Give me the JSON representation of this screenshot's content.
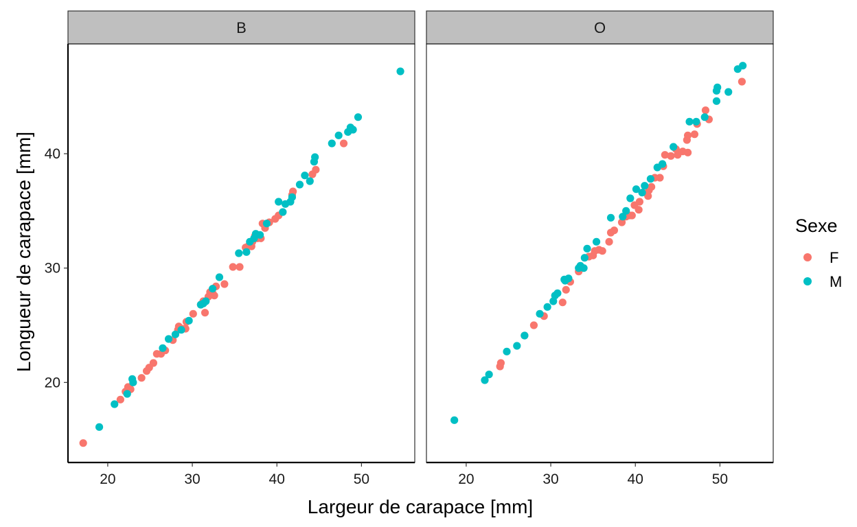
{
  "chart_data": {
    "type": "scatter",
    "xlabel": "Largeur de carapace  [mm]",
    "ylabel": "Longueur de carapace  [mm]",
    "xlim": [
      15.3,
      56.3
    ],
    "ylim": [
      13.0,
      49.6
    ],
    "x_ticks": [
      20,
      30,
      40,
      50
    ],
    "y_ticks": [
      20,
      30,
      40
    ],
    "grid": false,
    "legend": {
      "title": "Sexe",
      "position": "right",
      "entries": [
        {
          "label": "F",
          "color": "#F8766D"
        },
        {
          "label": "M",
          "color": "#00BFC4"
        }
      ]
    },
    "panels": [
      {
        "label": "B",
        "series": [
          {
            "name": "F",
            "color": "#F8766D",
            "points": [
              [
                17.1,
                14.7
              ],
              [
                21.5,
                18.5
              ],
              [
                22.1,
                19.2
              ],
              [
                22.4,
                19.6
              ],
              [
                22.7,
                19.4
              ],
              [
                24.0,
                20.4
              ],
              [
                24.6,
                21.0
              ],
              [
                24.9,
                21.3
              ],
              [
                25.4,
                21.7
              ],
              [
                25.8,
                22.5
              ],
              [
                26.3,
                22.5
              ],
              [
                26.8,
                22.8
              ],
              [
                27.7,
                23.7
              ],
              [
                28.3,
                24.6
              ],
              [
                28.4,
                24.9
              ],
              [
                28.8,
                24.7
              ],
              [
                29.2,
                24.7
              ],
              [
                29.3,
                25.3
              ],
              [
                30.1,
                26.0
              ],
              [
                31.0,
                26.8
              ],
              [
                31.3,
                27.1
              ],
              [
                31.5,
                26.1
              ],
              [
                31.9,
                27.5
              ],
              [
                32.1,
                27.9
              ],
              [
                32.4,
                27.8
              ],
              [
                32.6,
                27.6
              ],
              [
                32.8,
                28.4
              ],
              [
                33.8,
                28.6
              ],
              [
                34.8,
                30.1
              ],
              [
                35.6,
                30.1
              ],
              [
                36.3,
                31.8
              ],
              [
                36.6,
                31.9
              ],
              [
                37.0,
                31.9
              ],
              [
                37.1,
                32.3
              ],
              [
                37.4,
                32.8
              ],
              [
                37.7,
                32.6
              ],
              [
                38.1,
                32.6
              ],
              [
                38.3,
                33.9
              ],
              [
                38.6,
                33.5
              ],
              [
                39.1,
                34.0
              ],
              [
                39.8,
                34.3
              ],
              [
                40.2,
                34.6
              ],
              [
                41.8,
                36.4
              ],
              [
                41.9,
                36.7
              ],
              [
                44.2,
                38.2
              ],
              [
                44.6,
                38.6
              ],
              [
                47.9,
                40.9
              ]
            ]
          },
          {
            "name": "M",
            "color": "#00BFC4",
            "points": [
              [
                19.0,
                16.1
              ],
              [
                20.8,
                18.1
              ],
              [
                22.3,
                19.0
              ],
              [
                22.9,
                20.3
              ],
              [
                23.0,
                20.0
              ],
              [
                26.5,
                23.0
              ],
              [
                27.2,
                23.8
              ],
              [
                28.0,
                24.2
              ],
              [
                28.7,
                24.6
              ],
              [
                29.6,
                25.4
              ],
              [
                31.0,
                26.8
              ],
              [
                31.3,
                26.9
              ],
              [
                31.6,
                27.1
              ],
              [
                32.4,
                28.2
              ],
              [
                33.2,
                29.2
              ],
              [
                35.5,
                31.3
              ],
              [
                36.4,
                31.4
              ],
              [
                36.8,
                32.3
              ],
              [
                37.3,
                32.6
              ],
              [
                37.5,
                33.0
              ],
              [
                38.0,
                32.9
              ],
              [
                38.8,
                33.9
              ],
              [
                40.2,
                35.8
              ],
              [
                40.7,
                34.9
              ],
              [
                41.0,
                35.6
              ],
              [
                41.6,
                35.8
              ],
              [
                41.8,
                36.2
              ],
              [
                42.7,
                37.3
              ],
              [
                43.3,
                38.1
              ],
              [
                43.9,
                37.6
              ],
              [
                44.4,
                39.3
              ],
              [
                44.5,
                39.7
              ],
              [
                46.5,
                40.9
              ],
              [
                47.3,
                41.6
              ],
              [
                48.4,
                41.9
              ],
              [
                48.7,
                42.3
              ],
              [
                49.0,
                42.1
              ],
              [
                49.6,
                43.2
              ],
              [
                54.6,
                47.2
              ]
            ]
          }
        ]
      },
      {
        "label": "O",
        "series": [
          {
            "name": "F",
            "color": "#F8766D",
            "points": [
              [
                24.0,
                21.4
              ],
              [
                24.1,
                21.7
              ],
              [
                26.9,
                24.1
              ],
              [
                28.0,
                25.0
              ],
              [
                29.2,
                25.8
              ],
              [
                31.4,
                27.0
              ],
              [
                31.8,
                28.1
              ],
              [
                32.3,
                28.8
              ],
              [
                33.3,
                29.7
              ],
              [
                33.6,
                30.1
              ],
              [
                34.5,
                31.0
              ],
              [
                35.0,
                31.1
              ],
              [
                35.2,
                31.5
              ],
              [
                35.7,
                31.6
              ],
              [
                36.1,
                31.5
              ],
              [
                36.9,
                32.3
              ],
              [
                37.1,
                33.1
              ],
              [
                37.5,
                33.3
              ],
              [
                38.4,
                34.0
              ],
              [
                38.9,
                34.5
              ],
              [
                39.3,
                34.6
              ],
              [
                39.6,
                34.6
              ],
              [
                39.9,
                35.5
              ],
              [
                40.4,
                35.1
              ],
              [
                40.5,
                35.8
              ],
              [
                41.5,
                36.3
              ],
              [
                41.6,
                36.8
              ],
              [
                41.9,
                37.1
              ],
              [
                42.3,
                37.9
              ],
              [
                42.9,
                37.9
              ],
              [
                43.3,
                38.9
              ],
              [
                43.5,
                39.9
              ],
              [
                44.2,
                39.8
              ],
              [
                44.8,
                40.4
              ],
              [
                45.0,
                39.9
              ],
              [
                45.6,
                40.2
              ],
              [
                46.2,
                40.1
              ],
              [
                46.1,
                41.2
              ],
              [
                46.2,
                41.6
              ],
              [
                47.0,
                41.7
              ],
              [
                47.3,
                42.6
              ],
              [
                48.3,
                43.8
              ],
              [
                48.7,
                43.0
              ],
              [
                52.6,
                46.3
              ]
            ]
          },
          {
            "name": "M",
            "color": "#00BFC4",
            "points": [
              [
                18.6,
                16.7
              ],
              [
                22.2,
                20.2
              ],
              [
                22.7,
                20.7
              ],
              [
                24.8,
                22.7
              ],
              [
                26.0,
                23.2
              ],
              [
                26.9,
                24.1
              ],
              [
                28.7,
                26.0
              ],
              [
                29.6,
                26.6
              ],
              [
                30.3,
                27.1
              ],
              [
                30.5,
                27.6
              ],
              [
                30.8,
                27.8
              ],
              [
                31.6,
                29.0
              ],
              [
                31.7,
                28.9
              ],
              [
                32.1,
                29.1
              ],
              [
                33.3,
                30.0
              ],
              [
                33.5,
                30.2
              ],
              [
                33.9,
                30.0
              ],
              [
                34.0,
                30.9
              ],
              [
                34.3,
                31.7
              ],
              [
                35.4,
                32.3
              ],
              [
                37.1,
                34.4
              ],
              [
                38.5,
                34.5
              ],
              [
                38.9,
                35.0
              ],
              [
                39.4,
                36.1
              ],
              [
                40.1,
                36.9
              ],
              [
                40.8,
                36.6
              ],
              [
                41.1,
                37.2
              ],
              [
                41.8,
                37.8
              ],
              [
                42.6,
                38.8
              ],
              [
                43.2,
                39.1
              ],
              [
                44.5,
                40.6
              ],
              [
                46.4,
                42.8
              ],
              [
                47.2,
                42.8
              ],
              [
                48.2,
                43.2
              ],
              [
                49.6,
                44.6
              ],
              [
                49.6,
                45.5
              ],
              [
                49.7,
                45.8
              ],
              [
                51.0,
                45.4
              ],
              [
                52.1,
                47.4
              ],
              [
                52.7,
                47.7
              ]
            ]
          }
        ]
      }
    ]
  }
}
